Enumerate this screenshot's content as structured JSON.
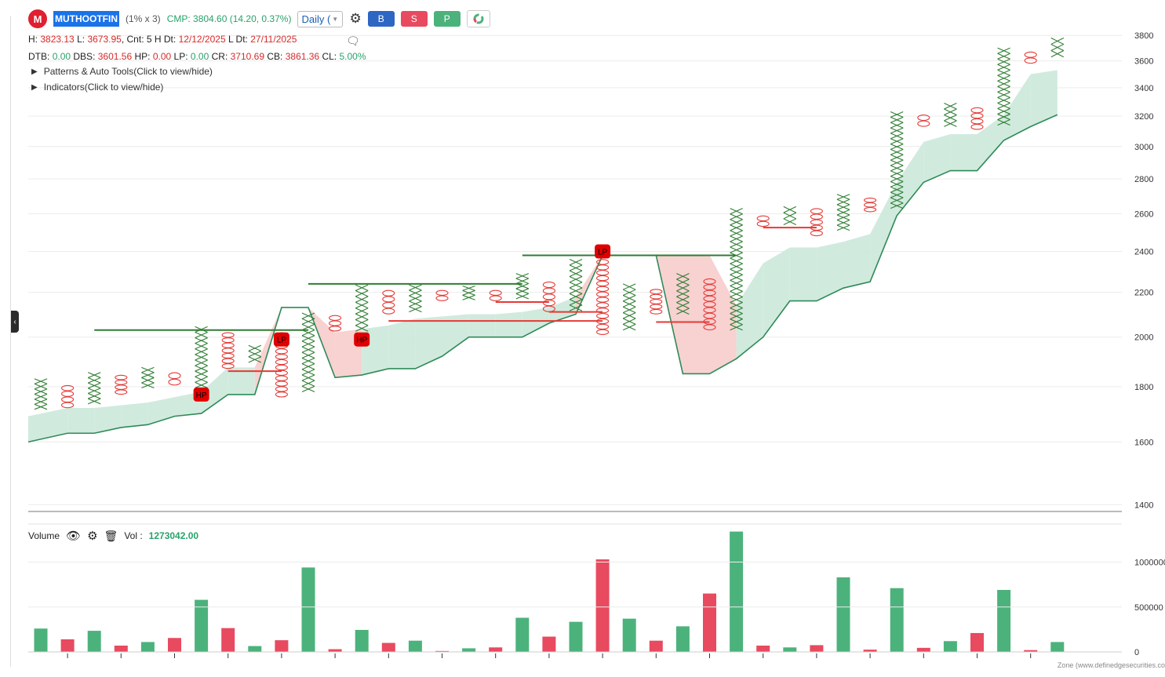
{
  "header": {
    "symbol": "MUTHOOTFIN",
    "box_params": "(1% x 3)",
    "cmp": "CMP: 3804.60 (14.20, 0.37%)",
    "timeframe": "Daily (",
    "buttons": {
      "buy": "B",
      "sell": "S",
      "p": "P"
    }
  },
  "info_line1": {
    "h_label": "H:",
    "h": "3823.13",
    "l_label": "L:",
    "l": "3673.95",
    "cnt": "Cnt: 5",
    "hdt_label": "H Dt:",
    "hdt": "12/12/2025",
    "ldt_label": "L Dt:",
    "ldt": "27/11/2025"
  },
  "info_line2": {
    "dtb_label": "DTB:",
    "dtb": "0.00",
    "dbs_label": "DBS:",
    "dbs": "3601.56",
    "hp_label": "HP:",
    "hp": "0.00",
    "lp_label": "LP:",
    "lp": "0.00",
    "cr_label": "CR:",
    "cr": "3710.69",
    "cb_label": "CB:",
    "cb": "3861.36",
    "cl_label": "CL:",
    "cl": "5.00%"
  },
  "toggles": {
    "patterns": "Patterns & Auto Tools(Click to view/hide)",
    "indicators": "Indicators(Click to view/hide)"
  },
  "volume": {
    "label": "Volume",
    "vol_label": "Vol :",
    "vol_value": "1273042.00"
  },
  "footer": "Zone (www.definedgesecurities.co",
  "colors": {
    "up": "#2e7d32",
    "down": "#e53935",
    "vol_up": "#4cb27c",
    "vol_down": "#e84a5f",
    "band_up": "#cfe9dc",
    "band_down": "#f8cfcf",
    "band_line": "#2e8b57"
  },
  "chart_data": {
    "type": "point-and-figure",
    "y_axis_ticks": [
      1400,
      1600,
      1800,
      2000,
      2200,
      2400,
      2600,
      2800,
      3000,
      3200,
      3400,
      3600,
      3800
    ],
    "ylim": [
      1380,
      3950
    ],
    "columns": [
      {
        "type": "X",
        "low": 1715,
        "high": 1830
      },
      {
        "type": "O",
        "low": 1720,
        "high": 1805
      },
      {
        "type": "X",
        "low": 1735,
        "high": 1855
      },
      {
        "type": "O",
        "low": 1770,
        "high": 1845
      },
      {
        "type": "X",
        "low": 1795,
        "high": 1875
      },
      {
        "type": "O",
        "low": 1805,
        "high": 1855
      },
      {
        "type": "X",
        "low": 1795,
        "high": 2045
      },
      {
        "type": "O",
        "low": 1870,
        "high": 2020
      },
      {
        "type": "X",
        "low": 1895,
        "high": 1965
      },
      {
        "type": "O",
        "low": 1760,
        "high": 2020
      },
      {
        "type": "X",
        "low": 1780,
        "high": 2105
      },
      {
        "type": "O",
        "low": 2025,
        "high": 2095
      },
      {
        "type": "X",
        "low": 2025,
        "high": 2235
      },
      {
        "type": "O",
        "low": 2100,
        "high": 2210
      },
      {
        "type": "X",
        "low": 2110,
        "high": 2235
      },
      {
        "type": "O",
        "low": 2160,
        "high": 2210
      },
      {
        "type": "X",
        "low": 2165,
        "high": 2230
      },
      {
        "type": "O",
        "low": 2160,
        "high": 2210
      },
      {
        "type": "X",
        "low": 2170,
        "high": 2290
      },
      {
        "type": "O",
        "low": 2110,
        "high": 2250
      },
      {
        "type": "X",
        "low": 2115,
        "high": 2360
      },
      {
        "type": "O",
        "low": 2010,
        "high": 2360
      },
      {
        "type": "X",
        "low": 2030,
        "high": 2240
      },
      {
        "type": "O",
        "low": 2100,
        "high": 2215
      },
      {
        "type": "X",
        "low": 2100,
        "high": 2290
      },
      {
        "type": "O",
        "low": 2030,
        "high": 2265
      },
      {
        "type": "X",
        "low": 2030,
        "high": 2630
      },
      {
        "type": "O",
        "low": 2530,
        "high": 2590
      },
      {
        "type": "X",
        "low": 2540,
        "high": 2640
      },
      {
        "type": "O",
        "low": 2480,
        "high": 2630
      },
      {
        "type": "X",
        "low": 2510,
        "high": 2710
      },
      {
        "type": "O",
        "low": 2610,
        "high": 2690
      },
      {
        "type": "X",
        "low": 2630,
        "high": 3230
      },
      {
        "type": "O",
        "low": 3130,
        "high": 3210
      },
      {
        "type": "X",
        "low": 3130,
        "high": 3290
      },
      {
        "type": "O",
        "low": 3110,
        "high": 3260
      },
      {
        "type": "X",
        "low": 3140,
        "high": 3700
      },
      {
        "type": "O",
        "low": 3580,
        "high": 3670
      },
      {
        "type": "X",
        "low": 3630,
        "high": 3780
      }
    ],
    "markers": [
      {
        "label": "HP",
        "col": 6,
        "value": 1770
      },
      {
        "label": "LP",
        "col": 9,
        "value": 1990
      },
      {
        "label": "HP",
        "col": 12,
        "value": 1990
      },
      {
        "label": "LP",
        "col": 21,
        "value": 2400
      }
    ],
    "green_lines": [
      {
        "y": 2030,
        "x_from_col": 2,
        "x_to_col": 10
      },
      {
        "y": 2240,
        "x_from_col": 10,
        "x_to_col": 18
      },
      {
        "y": 2380,
        "x_from_col": 18,
        "x_to_col": 26
      }
    ],
    "red_lines": [
      {
        "y": 1860,
        "x_from_col": 7,
        "x_to_col": 9
      },
      {
        "y": 2070,
        "x_from_col": 13,
        "x_to_col": 21
      },
      {
        "y": 2155,
        "x_from_col": 17,
        "x_to_col": 19
      },
      {
        "y": 2110,
        "x_from_col": 19,
        "x_to_col": 21
      },
      {
        "y": 2065,
        "x_from_col": 23,
        "x_to_col": 25
      },
      {
        "y": 2525,
        "x_from_col": 27,
        "x_to_col": 29
      }
    ],
    "band_upper": [
      1690,
      1720,
      1720,
      1730,
      1740,
      1760,
      1780,
      1875,
      1875,
      2130,
      2130,
      2020,
      2035,
      2050,
      2080,
      2090,
      2100,
      2100,
      2110,
      2130,
      2180,
      2380,
      2380,
      2380,
      2380,
      2380,
      2140,
      2340,
      2420,
      2420,
      2450,
      2490,
      2780,
      3030,
      3080,
      3080,
      3210,
      3500,
      3530
    ],
    "band_lower": [
      1600,
      1630,
      1630,
      1650,
      1660,
      1690,
      1700,
      1770,
      1770,
      2130,
      2130,
      1835,
      1845,
      1870,
      1870,
      1920,
      2000,
      2000,
      2000,
      2060,
      2100,
      2380,
      2380,
      2380,
      1850,
      1850,
      1910,
      2000,
      2160,
      2160,
      2220,
      2250,
      2590,
      2780,
      2850,
      2850,
      3040,
      3130,
      3210
    ],
    "volume_ticks": [
      0,
      500000,
      1000000
    ],
    "volume": [
      {
        "v": 260000,
        "dir": "up"
      },
      {
        "v": 140000,
        "dir": "down"
      },
      {
        "v": 235000,
        "dir": "up"
      },
      {
        "v": 70000,
        "dir": "down"
      },
      {
        "v": 110000,
        "dir": "up"
      },
      {
        "v": 155000,
        "dir": "down"
      },
      {
        "v": 580000,
        "dir": "up"
      },
      {
        "v": 265000,
        "dir": "down"
      },
      {
        "v": 65000,
        "dir": "up"
      },
      {
        "v": 130000,
        "dir": "down"
      },
      {
        "v": 940000,
        "dir": "up"
      },
      {
        "v": 30000,
        "dir": "down"
      },
      {
        "v": 245000,
        "dir": "up"
      },
      {
        "v": 100000,
        "dir": "down"
      },
      {
        "v": 125000,
        "dir": "up"
      },
      {
        "v": 10000,
        "dir": "down"
      },
      {
        "v": 40000,
        "dir": "up"
      },
      {
        "v": 50000,
        "dir": "down"
      },
      {
        "v": 380000,
        "dir": "up"
      },
      {
        "v": 170000,
        "dir": "down"
      },
      {
        "v": 335000,
        "dir": "up"
      },
      {
        "v": 1030000,
        "dir": "down"
      },
      {
        "v": 370000,
        "dir": "up"
      },
      {
        "v": 125000,
        "dir": "down"
      },
      {
        "v": 285000,
        "dir": "up"
      },
      {
        "v": 650000,
        "dir": "down"
      },
      {
        "v": 1340000,
        "dir": "up"
      },
      {
        "v": 70000,
        "dir": "down"
      },
      {
        "v": 50000,
        "dir": "up"
      },
      {
        "v": 75000,
        "dir": "down"
      },
      {
        "v": 830000,
        "dir": "up"
      },
      {
        "v": 25000,
        "dir": "down"
      },
      {
        "v": 710000,
        "dir": "up"
      },
      {
        "v": 45000,
        "dir": "down"
      },
      {
        "v": 120000,
        "dir": "up"
      },
      {
        "v": 210000,
        "dir": "down"
      },
      {
        "v": 690000,
        "dir": "up"
      },
      {
        "v": 20000,
        "dir": "down"
      },
      {
        "v": 110000,
        "dir": "up"
      }
    ]
  }
}
